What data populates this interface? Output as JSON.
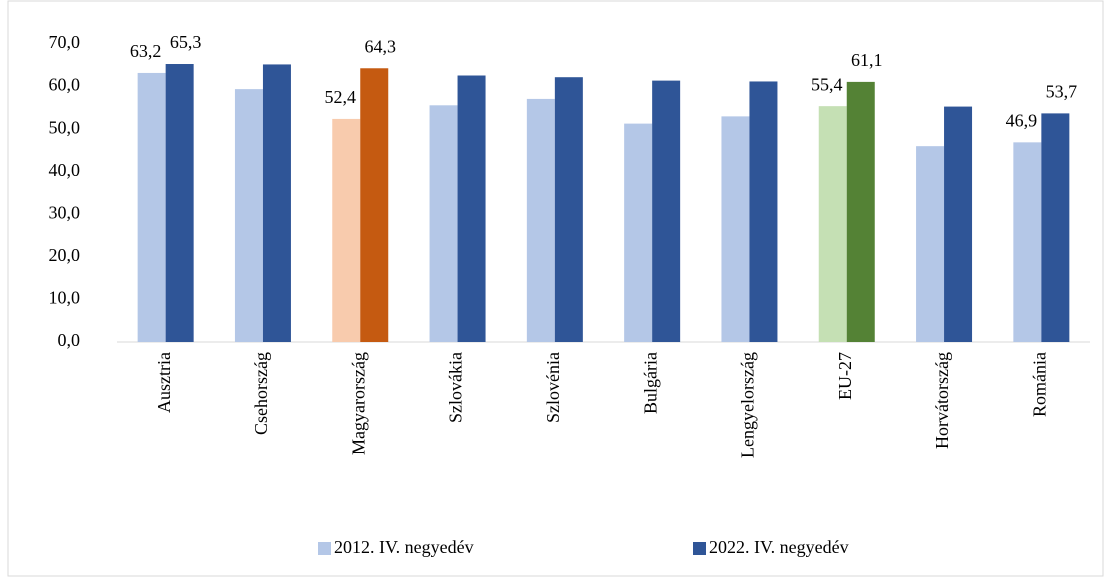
{
  "chart_data": {
    "type": "bar",
    "categories": [
      "Ausztria",
      "Csehország",
      "Magyarország",
      "Szlovákia",
      "Szlovénia",
      "Bulgária",
      "Lengyelország",
      "EU-27",
      "Horvátország",
      "Románia"
    ],
    "series": [
      {
        "name": "2012. IV. negyedév",
        "color": "#b4c7e7",
        "colors": [
          "#b4c7e7",
          "#b4c7e7",
          "#f8cbad",
          "#b4c7e7",
          "#b4c7e7",
          "#b4c7e7",
          "#b4c7e7",
          "#c5e0b4",
          "#b4c7e7",
          "#b4c7e7"
        ],
        "values": [
          63.2,
          59.4,
          52.4,
          55.6,
          57.1,
          51.3,
          53.0,
          55.4,
          46.0,
          46.9
        ],
        "value_labels": [
          "63,2",
          null,
          "52,4",
          null,
          null,
          null,
          null,
          "55,4",
          null,
          "46,9"
        ]
      },
      {
        "name": "2022. IV. negyedév",
        "color": "#2f5597",
        "colors": [
          "#2f5597",
          "#2f5597",
          "#c55a11",
          "#2f5597",
          "#2f5597",
          "#2f5597",
          "#2f5597",
          "#548235",
          "#2f5597",
          "#2f5597"
        ],
        "values": [
          65.3,
          65.2,
          64.3,
          62.6,
          62.2,
          61.4,
          61.2,
          61.1,
          55.3,
          53.7
        ],
        "value_labels": [
          "65,3",
          null,
          "64,3",
          null,
          null,
          null,
          null,
          "61,1",
          null,
          "53,7"
        ]
      }
    ],
    "ylim": [
      0,
      70
    ],
    "yticks": [
      {
        "value": 0,
        "label": "0,0"
      },
      {
        "value": 10,
        "label": "10,0"
      },
      {
        "value": 20,
        "label": "20,0"
      },
      {
        "value": 30,
        "label": "30,0"
      },
      {
        "value": 40,
        "label": "40,0"
      },
      {
        "value": 50,
        "label": "50,0"
      },
      {
        "value": 60,
        "label": "60,0"
      },
      {
        "value": 70,
        "label": "70,0"
      }
    ],
    "legend": "bottom"
  }
}
